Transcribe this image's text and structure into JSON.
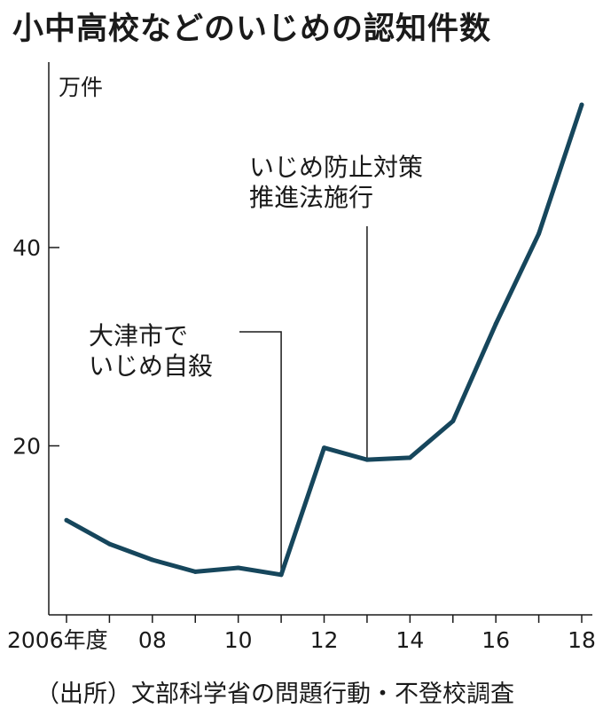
{
  "chart_data": {
    "type": "line",
    "title": "小中高校などのいじめの認知件数",
    "ylabel": "万件",
    "x": [
      2006,
      2007,
      2008,
      2009,
      2010,
      2011,
      2012,
      2013,
      2014,
      2015,
      2016,
      2017,
      2018
    ],
    "x_tick_labels": [
      "2006年度",
      "08",
      "10",
      "12",
      "14",
      "16",
      "18"
    ],
    "x_tick_values": [
      2006,
      2008,
      2010,
      2012,
      2014,
      2016,
      2018
    ],
    "series": [
      {
        "values": [
          12.5,
          10.1,
          8.5,
          7.3,
          7.7,
          7.0,
          19.8,
          18.6,
          18.8,
          22.5,
          32.3,
          41.4,
          54.4
        ]
      }
    ],
    "ylim": [
      0,
      58
    ],
    "y_ticks": [
      20,
      40
    ],
    "grid": false,
    "line_color": "#16465c",
    "annotations": [
      {
        "x": 2011,
        "lines": [
          "大津市で",
          "いじめ自殺"
        ]
      },
      {
        "x": 2013,
        "lines": [
          "いじめ防止対策",
          "推進法施行"
        ]
      }
    ],
    "source": "（出所）文部科学省の問題行動・不登校調査"
  }
}
